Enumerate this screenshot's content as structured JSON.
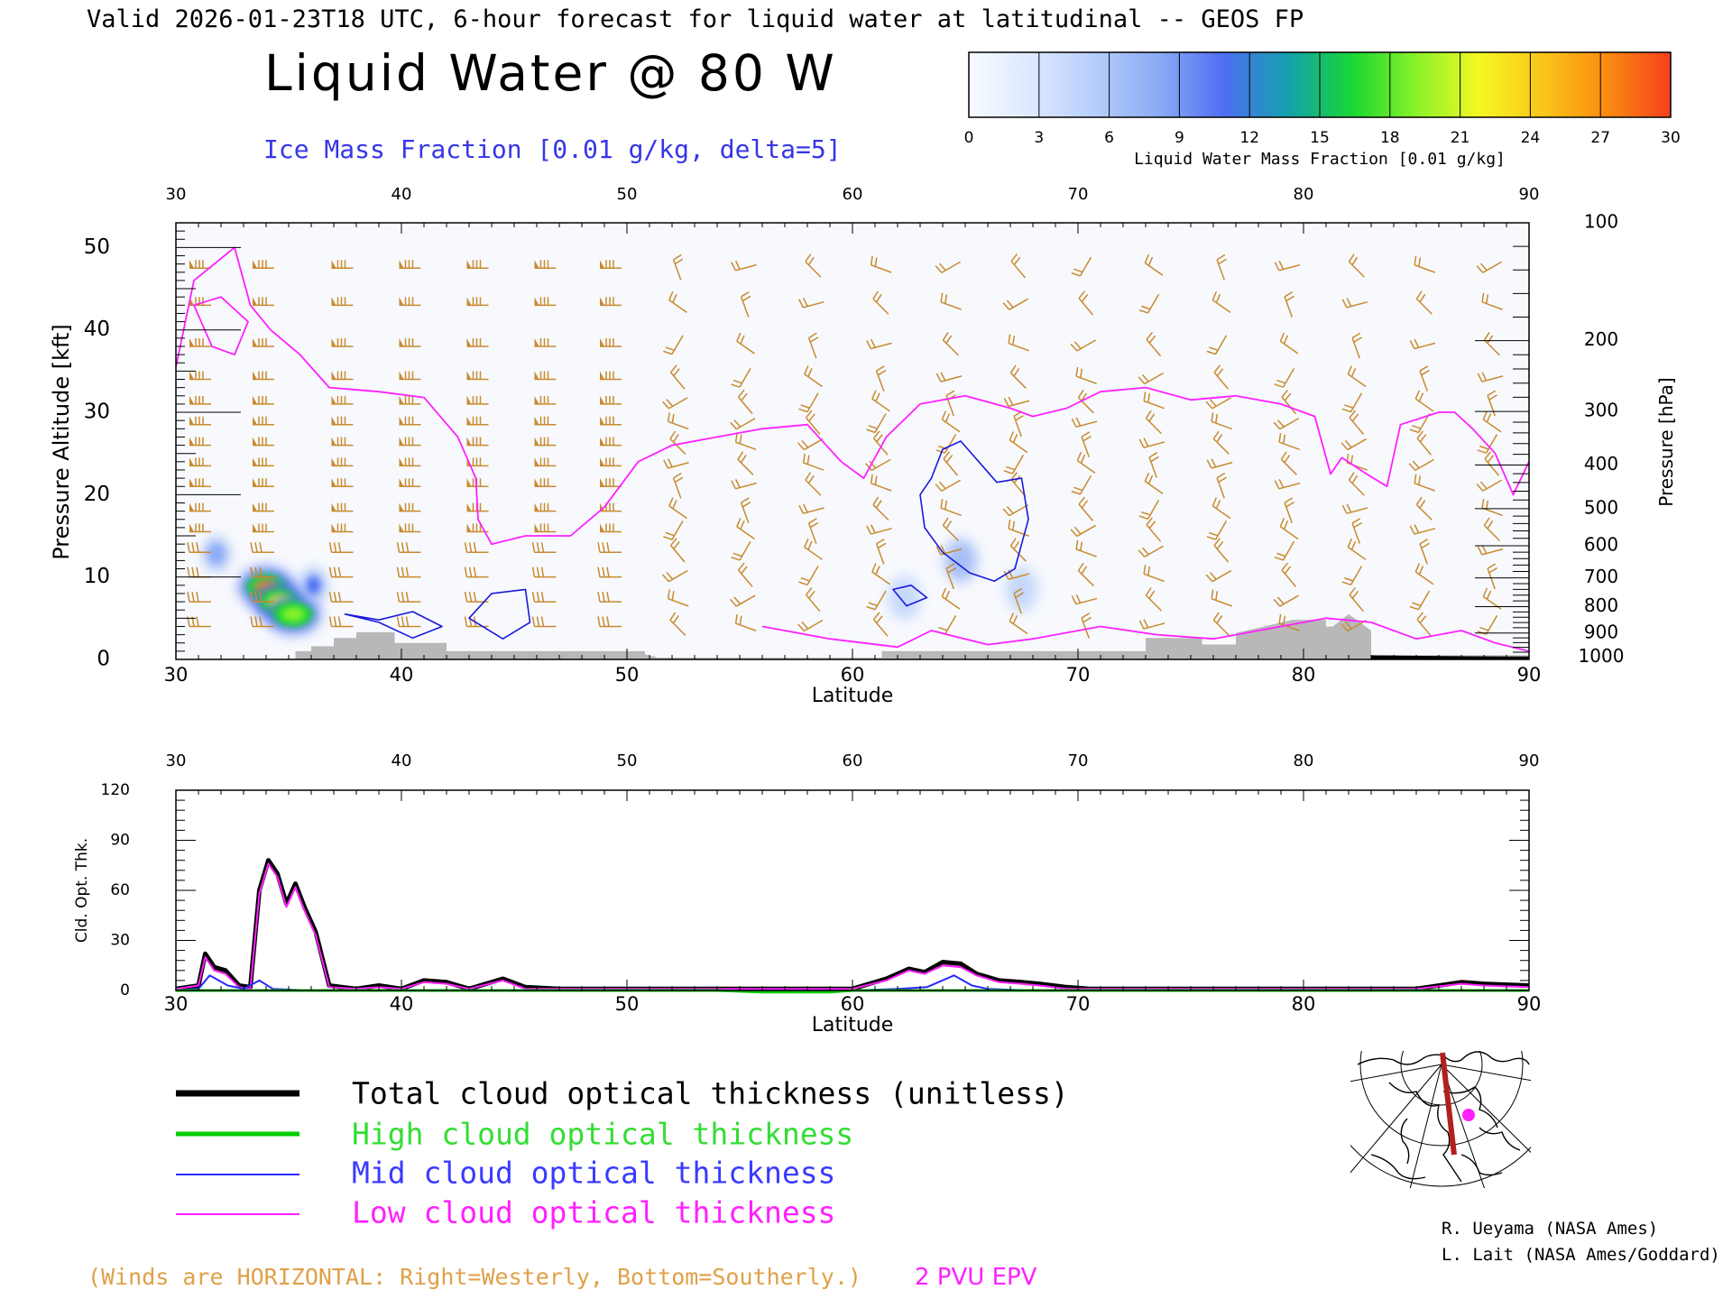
{
  "header": {
    "valid_line": "Valid 2026-01-23T18 UTC, 6-hour forecast for liquid water at latitudinal -- GEOS FP",
    "main_title": "Liquid Water @ 80 W",
    "subtitle": "Ice Mass Fraction [0.01 g/kg, delta=5]"
  },
  "colorbar": {
    "label": "Liquid Water Mass Fraction [0.01 g/kg]",
    "ticks": [
      "0",
      "3",
      "6",
      "9",
      "12",
      "15",
      "18",
      "21",
      "24",
      "27",
      "30"
    ],
    "colors": [
      "#f8fbff",
      "#dce8ff",
      "#b4cdfb",
      "#8aaaf5",
      "#4f6ef2",
      "#14a0ae",
      "#18d634",
      "#88f22a",
      "#f4f822",
      "#fac51a",
      "#fa8b12",
      "#f5401c"
    ]
  },
  "colors": {
    "wind_barb": "#c98a2f",
    "epv": "#ff20ff",
    "ice_contour": "#1a1ad8",
    "terrain": "#b8b8b8",
    "total": "#000000",
    "high": "#00cc00",
    "mid": "#2a2aff",
    "low": "#ff20ff",
    "winds_note": "#e0a048"
  },
  "chart_data": [
    {
      "type": "heatmap",
      "name": "cross-section",
      "x_ticks": [
        "30",
        "40",
        "50",
        "60",
        "70",
        "80",
        "90"
      ],
      "xlabel": "Latitude",
      "ylabel": "Pressure Altitude [kft]",
      "y_ticks": [
        "0",
        "10",
        "20",
        "30",
        "40",
        "50"
      ],
      "ylim": [
        0,
        53
      ],
      "right_ylabel": "Pressure [hPa]",
      "pressure_levels": [
        {
          "label": "100",
          "kft": 53.0
        },
        {
          "label": "200",
          "kft": 38.7
        },
        {
          "label": "300",
          "kft": 30.1
        },
        {
          "label": "400",
          "kft": 23.6
        },
        {
          "label": "500",
          "kft": 18.3
        },
        {
          "label": "600",
          "kft": 13.8
        },
        {
          "label": "700",
          "kft": 9.9
        },
        {
          "label": "800",
          "kft": 6.4
        },
        {
          "label": "900",
          "kft": 3.2
        },
        {
          "label": "1000",
          "kft": 0.3
        }
      ],
      "xlim": [
        30,
        90
      ],
      "liquid_blobs": [
        {
          "lat": 34.0,
          "kft": 8.8,
          "value": 28
        },
        {
          "lat": 34.6,
          "kft": 7.0,
          "value": 22
        },
        {
          "lat": 35.2,
          "kft": 5.5,
          "value": 20
        },
        {
          "lat": 36.1,
          "kft": 9.0,
          "value": 12
        },
        {
          "lat": 31.8,
          "kft": 12.8,
          "value": 8
        },
        {
          "lat": 64.8,
          "kft": 12.0,
          "value": 4
        },
        {
          "lat": 62.3,
          "kft": 7.5,
          "value": 3
        },
        {
          "lat": 67.5,
          "kft": 8.5,
          "value": 2
        }
      ],
      "epv_2pvu_kft": [
        [
          30.0,
          35.5
        ],
        [
          30.8,
          46
        ],
        [
          32.6,
          50
        ],
        [
          33.3,
          43
        ],
        [
          34.2,
          40
        ],
        [
          35.5,
          37
        ],
        [
          36.8,
          33
        ],
        [
          39.0,
          32.5
        ],
        [
          41.0,
          31.8
        ],
        [
          42.5,
          27
        ],
        [
          43.3,
          22
        ],
        [
          43.4,
          17
        ],
        [
          44.0,
          14
        ],
        [
          45.5,
          15
        ],
        [
          47.5,
          15
        ],
        [
          49.0,
          18.5
        ],
        [
          50.5,
          24
        ],
        [
          52.0,
          26
        ],
        [
          54.0,
          27
        ],
        [
          56.0,
          28
        ],
        [
          58.0,
          28.5
        ],
        [
          59.5,
          24
        ],
        [
          60.5,
          22
        ],
        [
          61.5,
          27
        ],
        [
          63.0,
          31
        ],
        [
          65.0,
          32
        ],
        [
          67.0,
          30.5
        ],
        [
          68.0,
          29.5
        ],
        [
          69.5,
          30.5
        ],
        [
          71.0,
          32.5
        ],
        [
          73.0,
          33
        ],
        [
          75.0,
          31.5
        ],
        [
          77.0,
          32
        ],
        [
          79.0,
          31
        ],
        [
          80.5,
          29.5
        ],
        [
          81.2,
          22.5
        ],
        [
          81.7,
          24.5
        ],
        [
          82.8,
          22.5
        ],
        [
          83.7,
          21
        ],
        [
          84.3,
          28.5
        ],
        [
          86.0,
          30
        ],
        [
          86.7,
          30
        ],
        [
          87.5,
          28
        ],
        [
          88.5,
          25
        ],
        [
          89.3,
          20
        ],
        [
          90.0,
          24
        ]
      ],
      "epv_upper_loop_kft": [
        [
          30.8,
          43
        ],
        [
          31.6,
          38
        ],
        [
          32.6,
          37
        ],
        [
          33.2,
          41
        ],
        [
          32.0,
          44
        ],
        [
          30.8,
          43
        ]
      ],
      "epv_lower_kft": [
        [
          56.0,
          4.0
        ],
        [
          59.0,
          2.5
        ],
        [
          62.0,
          1.5
        ],
        [
          63.5,
          3.5
        ],
        [
          66.0,
          1.8
        ],
        [
          68.0,
          2.5
        ],
        [
          71.0,
          4.0
        ],
        [
          73.5,
          3.0
        ],
        [
          76.0,
          2.5
        ],
        [
          79.0,
          4.0
        ],
        [
          81.0,
          5.0
        ],
        [
          83.0,
          4.5
        ],
        [
          85.0,
          2.5
        ],
        [
          87.0,
          3.5
        ],
        [
          88.5,
          2.0
        ],
        [
          90.0,
          1.0
        ]
      ],
      "ice_contours_kft": [
        [
          [
            63.0,
            20
          ],
          [
            63.5,
            22
          ],
          [
            64.0,
            25.5
          ],
          [
            64.8,
            26.5
          ],
          [
            65.6,
            24
          ],
          [
            66.4,
            21.5
          ],
          [
            67.5,
            22
          ],
          [
            67.8,
            17
          ],
          [
            67.2,
            11
          ],
          [
            66.3,
            9.5
          ],
          [
            65.2,
            10.5
          ],
          [
            64.0,
            13
          ],
          [
            63.2,
            16
          ],
          [
            63.0,
            20
          ]
        ],
        [
          [
            37.5,
            5.5
          ],
          [
            39.0,
            4.8
          ],
          [
            40.5,
            5.8
          ],
          [
            41.8,
            4.0
          ],
          [
            40.5,
            2.6
          ],
          [
            39.0,
            4.5
          ],
          [
            37.5,
            5.5
          ]
        ],
        [
          [
            43.0,
            5.0
          ],
          [
            44.0,
            8.0
          ],
          [
            45.5,
            8.5
          ],
          [
            45.7,
            4.5
          ],
          [
            44.5,
            2.5
          ],
          [
            43.0,
            5.0
          ]
        ],
        [
          [
            61.8,
            8.5
          ],
          [
            62.6,
            9.0
          ],
          [
            63.3,
            7.5
          ],
          [
            62.4,
            6.5
          ],
          [
            61.8,
            8.5
          ]
        ]
      ],
      "terrain_kft": [
        [
          35.3,
          1.0
        ],
        [
          36.0,
          1.0
        ],
        [
          36.0,
          1.6
        ],
        [
          37.0,
          1.6
        ],
        [
          37.0,
          2.6
        ],
        [
          38.0,
          2.6
        ],
        [
          38.0,
          3.3
        ],
        [
          39.7,
          3.3
        ],
        [
          39.7,
          2.0
        ],
        [
          42.0,
          2.0
        ],
        [
          42.0,
          1.0
        ],
        [
          50.8,
          1.0
        ],
        [
          50.8,
          0.6
        ],
        [
          51.3,
          0.3
        ],
        [
          51.3,
          0.2
        ],
        [
          61.3,
          0.2
        ],
        [
          61.3,
          1.0
        ],
        [
          73.0,
          1.0
        ],
        [
          73.0,
          2.6
        ],
        [
          75.5,
          2.6
        ],
        [
          75.5,
          1.8
        ],
        [
          77.0,
          1.8
        ],
        [
          77.0,
          3.2
        ],
        [
          79.5,
          4.8
        ],
        [
          81.0,
          4.8
        ],
        [
          81.0,
          4.0
        ],
        [
          81.3,
          4.0
        ],
        [
          82.0,
          5.5
        ],
        [
          83.0,
          3.5
        ],
        [
          83.0,
          0.5
        ],
        [
          90.0,
          0.5
        ]
      ]
    },
    {
      "type": "line",
      "name": "cloud optical thickness",
      "x_ticks": [
        "30",
        "40",
        "50",
        "60",
        "70",
        "80",
        "90"
      ],
      "xlabel": "Latitude",
      "ylabel": "Cld. Opt. Thk.",
      "y_ticks": [
        "0",
        "30",
        "60",
        "90",
        "120"
      ],
      "ylim": [
        0,
        120
      ],
      "xlim": [
        30,
        90
      ],
      "series": [
        {
          "name": "Total cloud optical thickness (unitless)",
          "color": "#000000",
          "width": 5,
          "points": [
            [
              30,
              1
            ],
            [
              31,
              3
            ],
            [
              31.3,
              22
            ],
            [
              31.7,
              14
            ],
            [
              32.2,
              12
            ],
            [
              32.8,
              3
            ],
            [
              33.3,
              2
            ],
            [
              33.7,
              60
            ],
            [
              34.1,
              78
            ],
            [
              34.5,
              70
            ],
            [
              34.9,
              52
            ],
            [
              35.3,
              64
            ],
            [
              35.7,
              50
            ],
            [
              36.2,
              35
            ],
            [
              36.8,
              3
            ],
            [
              38,
              1
            ],
            [
              39,
              3
            ],
            [
              40,
              1
            ],
            [
              41,
              6
            ],
            [
              42,
              5
            ],
            [
              43,
              1
            ],
            [
              44.5,
              7
            ],
            [
              45.5,
              2
            ],
            [
              47,
              1
            ],
            [
              60,
              1
            ],
            [
              61.5,
              7
            ],
            [
              62.5,
              13
            ],
            [
              63.2,
              11
            ],
            [
              64,
              17
            ],
            [
              64.8,
              16
            ],
            [
              65.5,
              10
            ],
            [
              66.5,
              6
            ],
            [
              67.5,
              5
            ],
            [
              68.3,
              4
            ],
            [
              69.5,
              2
            ],
            [
              70.5,
              1
            ],
            [
              80,
              1
            ],
            [
              85,
              1
            ],
            [
              87,
              5
            ],
            [
              88,
              4
            ],
            [
              90,
              3
            ]
          ]
        },
        {
          "name": "Low cloud optical thickness",
          "color": "#ff20ff",
          "width": 2,
          "points": [
            [
              30,
              1
            ],
            [
              31,
              3
            ],
            [
              31.3,
              20
            ],
            [
              31.7,
              12
            ],
            [
              32.2,
              10
            ],
            [
              32.8,
              2
            ],
            [
              33.3,
              1
            ],
            [
              33.7,
              58
            ],
            [
              34.1,
              76
            ],
            [
              34.5,
              68
            ],
            [
              34.9,
              50
            ],
            [
              35.3,
              62
            ],
            [
              35.7,
              48
            ],
            [
              36.2,
              33
            ],
            [
              36.8,
              2
            ],
            [
              38,
              1
            ],
            [
              39,
              2
            ],
            [
              40,
              1
            ],
            [
              41,
              5
            ],
            [
              42,
              4
            ],
            [
              43,
              1
            ],
            [
              44.5,
              6
            ],
            [
              45.5,
              1
            ],
            [
              47,
              1
            ],
            [
              60,
              1
            ],
            [
              61.5,
              6
            ],
            [
              62.5,
              12
            ],
            [
              63.2,
              10
            ],
            [
              64,
              15
            ],
            [
              64.8,
              14
            ],
            [
              65.5,
              9
            ],
            [
              66.5,
              5
            ],
            [
              67.5,
              4
            ],
            [
              68.3,
              3
            ],
            [
              69.5,
              1
            ],
            [
              70.5,
              1
            ],
            [
              80,
              1
            ],
            [
              85,
              1
            ],
            [
              87,
              4
            ],
            [
              88,
              3
            ],
            [
              90,
              2
            ]
          ]
        },
        {
          "name": "Mid cloud optical thickness",
          "color": "#2a2aff",
          "width": 2,
          "points": [
            [
              30,
              0
            ],
            [
              31,
              1
            ],
            [
              31.5,
              9
            ],
            [
              32.3,
              3
            ],
            [
              33.0,
              1
            ],
            [
              33.7,
              6
            ],
            [
              34.3,
              1
            ],
            [
              36,
              0
            ],
            [
              60,
              0
            ],
            [
              62,
              1
            ],
            [
              63.3,
              2
            ],
            [
              64.5,
              9
            ],
            [
              65.3,
              3
            ],
            [
              66,
              1
            ],
            [
              68,
              0
            ],
            [
              90,
              0
            ]
          ]
        },
        {
          "name": "High cloud optical thickness",
          "color": "#00cc00",
          "width": 3,
          "points": [
            [
              30,
              0
            ],
            [
              54,
              0
            ],
            [
              56,
              -1
            ],
            [
              59,
              -1
            ],
            [
              60,
              0
            ],
            [
              70,
              0
            ],
            [
              90,
              0
            ]
          ]
        }
      ]
    }
  ],
  "legend": [
    {
      "label": "Total cloud optical thickness (unitless)",
      "color": "#000000",
      "width": 7
    },
    {
      "label": "High cloud optical thickness",
      "color": "#00cc00",
      "width": 5
    },
    {
      "label": "Mid cloud optical thickness",
      "color": "#2a2aff",
      "width": 2
    },
    {
      "label": "Low cloud optical thickness",
      "color": "#ff20ff",
      "width": 2
    }
  ],
  "credits": [
    "R. Ueyama (NASA Ames)",
    "L. Lait (NASA Ames/Goddard)"
  ],
  "footer": {
    "winds_note": "(Winds are HORIZONTAL: Right=Westerly, Bottom=Southerly.)",
    "epv_label": "2 PVU EPV"
  },
  "wind_barbs": {
    "columns_lat": [
      31.0,
      33.8,
      37.3,
      40.3,
      43.3,
      46.3,
      49.2,
      52.2,
      55.2,
      58.2,
      61.2,
      64.3,
      67.3,
      70.3,
      73.3,
      76.3,
      79.3,
      82.3,
      85.3,
      88.3
    ],
    "levels_kft": [
      4,
      7,
      10,
      13,
      15.5,
      18,
      21,
      23.5,
      26,
      28.5,
      31,
      34,
      38,
      43,
      47.5,
      53
    ]
  }
}
